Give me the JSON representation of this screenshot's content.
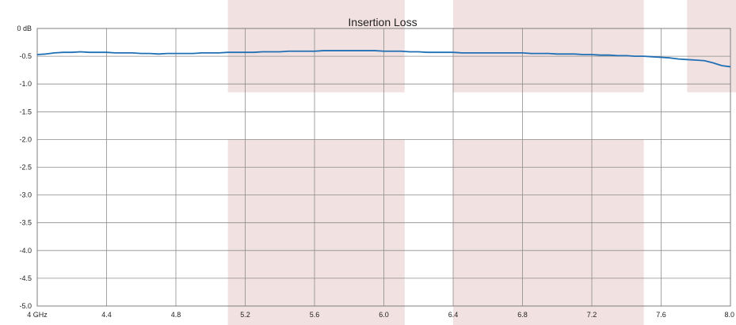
{
  "chart_data": {
    "type": "line",
    "title": "Insertion Loss",
    "xlabel": "",
    "ylabel": "",
    "xlim": [
      4.0,
      8.0
    ],
    "ylim": [
      -5.0,
      0.0
    ],
    "grid": true,
    "x_ticks": [
      {
        "value": 4.0,
        "label": "4 GHz"
      },
      {
        "value": 4.4,
        "label": "4.4"
      },
      {
        "value": 4.8,
        "label": "4.8"
      },
      {
        "value": 5.2,
        "label": "5.2"
      },
      {
        "value": 5.6,
        "label": "5.6"
      },
      {
        "value": 6.0,
        "label": "6.0"
      },
      {
        "value": 6.4,
        "label": "6.4"
      },
      {
        "value": 6.8,
        "label": "6.8"
      },
      {
        "value": 7.2,
        "label": "7.2"
      },
      {
        "value": 7.6,
        "label": "7.6"
      },
      {
        "value": 8.0,
        "label": "8.0"
      }
    ],
    "y_ticks": [
      {
        "value": 0.0,
        "label": "0 dB"
      },
      {
        "value": -0.5,
        "label": "-0.5"
      },
      {
        "value": -1.0,
        "label": "-1.0"
      },
      {
        "value": -1.5,
        "label": "-1.5"
      },
      {
        "value": -2.0,
        "label": "-2.0"
      },
      {
        "value": -2.5,
        "label": "-2.5"
      },
      {
        "value": -3.0,
        "label": "-3.0"
      },
      {
        "value": -3.5,
        "label": "-3.5"
      },
      {
        "value": -4.0,
        "label": "-4.0"
      },
      {
        "value": -4.5,
        "label": "-4.5"
      },
      {
        "value": -5.0,
        "label": "-5.0"
      }
    ],
    "spec_masks": [
      {
        "x0": 5.1,
        "x1": 6.12,
        "y_top": 0.0,
        "y_bottom": -1.15
      },
      {
        "x0": 5.1,
        "x1": 6.12,
        "y_top": -2.0,
        "y_bottom": -5.0
      },
      {
        "x0": 6.4,
        "x1": 7.5,
        "y_top": 0.0,
        "y_bottom": -1.15
      },
      {
        "x0": 6.4,
        "x1": 7.5,
        "y_top": -2.0,
        "y_bottom": -5.0
      },
      {
        "x0": 7.75,
        "x1": 8.0,
        "y_top": 0.0,
        "y_bottom": -1.15
      }
    ],
    "colors": {
      "line": "#1f6fb4",
      "mask": "#f2e1e1",
      "grid": "#8c8c8c",
      "axis": "#7f7f7f"
    },
    "series": [
      {
        "x": [
          4.0,
          4.05,
          4.1,
          4.15,
          4.2,
          4.25,
          4.3,
          4.35,
          4.4,
          4.45,
          4.5,
          4.55,
          4.6,
          4.65,
          4.7,
          4.75,
          4.8,
          4.85,
          4.9,
          4.95,
          5.0,
          5.05,
          5.1,
          5.15,
          5.2,
          5.25,
          5.3,
          5.35,
          5.4,
          5.45,
          5.5,
          5.55,
          5.6,
          5.65,
          5.7,
          5.75,
          5.8,
          5.85,
          5.9,
          5.95,
          6.0,
          6.05,
          6.1,
          6.15,
          6.2,
          6.25,
          6.3,
          6.35,
          6.4,
          6.45,
          6.5,
          6.55,
          6.6,
          6.65,
          6.7,
          6.75,
          6.8,
          6.85,
          6.9,
          6.95,
          7.0,
          7.05,
          7.1,
          7.15,
          7.2,
          7.25,
          7.3,
          7.35,
          7.4,
          7.45,
          7.5,
          7.55,
          7.6,
          7.65,
          7.7,
          7.75,
          7.8,
          7.85,
          7.9,
          7.95,
          8.0
        ],
        "y": [
          -0.47,
          -0.46,
          -0.44,
          -0.43,
          -0.43,
          -0.42,
          -0.43,
          -0.43,
          -0.43,
          -0.44,
          -0.44,
          -0.44,
          -0.45,
          -0.45,
          -0.46,
          -0.45,
          -0.45,
          -0.45,
          -0.45,
          -0.44,
          -0.44,
          -0.44,
          -0.43,
          -0.43,
          -0.43,
          -0.43,
          -0.42,
          -0.42,
          -0.42,
          -0.41,
          -0.41,
          -0.41,
          -0.41,
          -0.4,
          -0.4,
          -0.4,
          -0.4,
          -0.4,
          -0.4,
          -0.4,
          -0.41,
          -0.41,
          -0.41,
          -0.42,
          -0.42,
          -0.43,
          -0.43,
          -0.43,
          -0.43,
          -0.44,
          -0.44,
          -0.44,
          -0.44,
          -0.44,
          -0.44,
          -0.44,
          -0.44,
          -0.45,
          -0.45,
          -0.45,
          -0.46,
          -0.46,
          -0.46,
          -0.47,
          -0.47,
          -0.48,
          -0.48,
          -0.49,
          -0.49,
          -0.5,
          -0.5,
          -0.51,
          -0.52,
          -0.53,
          -0.55,
          -0.56,
          -0.57,
          -0.58,
          -0.62,
          -0.67,
          -0.69
        ]
      }
    ]
  }
}
